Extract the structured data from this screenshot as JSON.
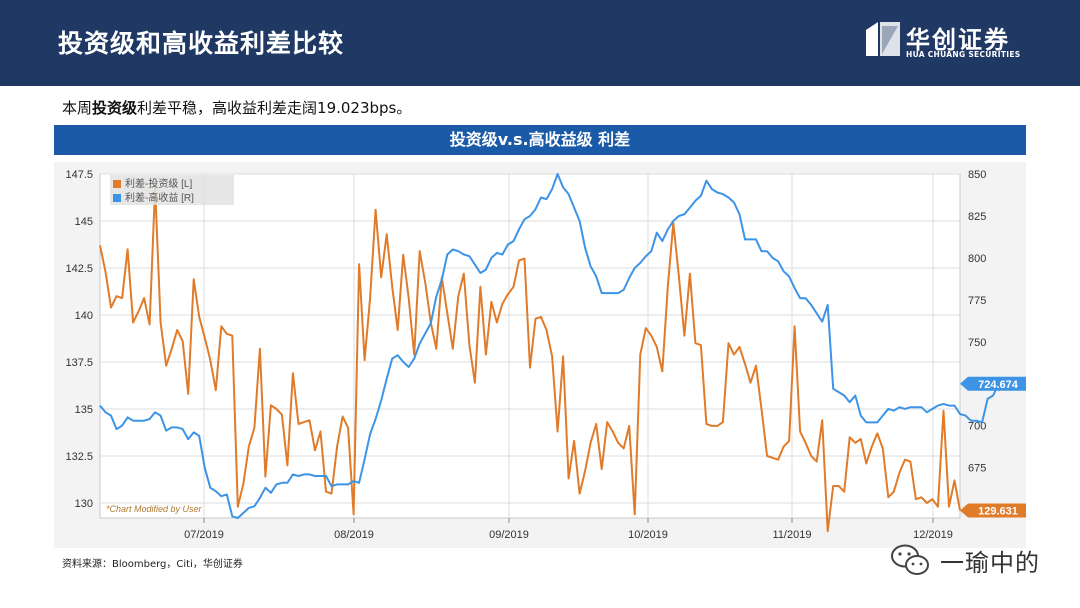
{
  "header": {
    "title": "投资级和高收益利差比较",
    "logo_cn": "华创证券",
    "logo_en": "HUA CHUANG SECURITIES"
  },
  "subtitle": {
    "prefix": "本周",
    "bold": "投资级",
    "suffix": "利差平稳，高收益利差走阔19.023bps。"
  },
  "chart_banner": "投资级v.s.高收益级 利差",
  "source": "资料来源：Bloomberg，Citi，华创证券",
  "watermark": "一瑜中的",
  "colors": {
    "ig": "#e07b2a",
    "hy": "#3d94e6",
    "header": "#1f3864",
    "banner": "#1a5aa6"
  },
  "chart_data": {
    "type": "line",
    "title": "投资级v.s.高收益级 利差",
    "note": "*Chart Modified by User",
    "x_tick_labels": [
      "07/2019",
      "08/2019",
      "09/2019",
      "10/2019",
      "11/2019",
      "12/2019"
    ],
    "y_left": {
      "ticks": [
        "147.5",
        "145",
        "142.5",
        "140",
        "137.5",
        "135",
        "132.5",
        "130"
      ],
      "min": 129.2,
      "max": 147.5
    },
    "y_right": {
      "ticks": [
        "850",
        "825",
        "800",
        "775",
        "750",
        "725",
        "700",
        "675",
        "650"
      ],
      "min": 645,
      "max": 850
    },
    "grid": true,
    "legend_position": "top-left",
    "series": [
      {
        "name": "利差-投资级 [L]",
        "axis": "left",
        "last_value_label": "129.631",
        "values": [
          143.7,
          142.3,
          140.4,
          141.0,
          140.9,
          143.5,
          139.6,
          140.2,
          140.9,
          139.5,
          146.8,
          139.6,
          137.3,
          138.2,
          139.2,
          138.6,
          135.8,
          141.9,
          139.9,
          138.8,
          137.6,
          136.0,
          139.4,
          139.0,
          138.9,
          129.8,
          131.0,
          133.0,
          134.0,
          138.2,
          131.4,
          135.2,
          135.0,
          134.7,
          132.0,
          136.9,
          134.2,
          134.3,
          134.4,
          132.8,
          133.8,
          130.6,
          130.5,
          133.0,
          134.6,
          134.0,
          129.4,
          142.7,
          137.6,
          140.9,
          145.6,
          142.0,
          144.3,
          141.5,
          139.2,
          143.2,
          140.9,
          137.9,
          143.4,
          141.7,
          139.6,
          138.2,
          142.0,
          140.1,
          138.2,
          141.0,
          142.2,
          138.4,
          136.4,
          141.5,
          137.9,
          140.7,
          139.6,
          140.6,
          141.1,
          141.5,
          142.9,
          143.0,
          137.2,
          139.8,
          139.9,
          139.2,
          137.8,
          133.8,
          137.8,
          131.3,
          133.3,
          130.5,
          131.7,
          133.2,
          134.2,
          131.8,
          134.3,
          133.8,
          133.2,
          132.9,
          134.1,
          129.4,
          137.9,
          139.3,
          138.9,
          138.3,
          137.0,
          141.5,
          144.9,
          142.1,
          138.9,
          142.2,
          138.5,
          138.4,
          134.2,
          134.1,
          134.1,
          134.3,
          138.5,
          137.9,
          138.3,
          137.4,
          136.4,
          137.3,
          135.0,
          132.5,
          132.4,
          132.3,
          133.0,
          133.3,
          139.4,
          133.8,
          133.2,
          132.5,
          132.2,
          134.4,
          128.5,
          130.9,
          130.9,
          130.6,
          133.5,
          133.2,
          133.4,
          132.1,
          133.0,
          133.7,
          132.9,
          130.3,
          130.6,
          131.6,
          132.3,
          132.2,
          130.2,
          130.3,
          130.0,
          130.2,
          129.8,
          134.9,
          129.8,
          131.2,
          129.6
        ]
      },
      {
        "name": "利差-高收益 [R]",
        "axis": "right",
        "last_value_label": "724.674",
        "values": [
          712,
          708,
          706,
          698,
          700,
          705,
          703,
          703,
          703,
          704,
          708,
          706,
          697,
          699,
          699,
          698,
          692,
          696,
          694,
          675,
          663,
          661,
          658,
          659,
          646,
          645,
          648,
          651,
          652,
          657,
          663,
          660,
          665,
          666,
          666,
          671,
          670,
          671,
          671,
          670,
          670,
          670,
          664,
          665,
          665,
          665,
          667,
          666,
          680,
          695,
          704,
          715,
          728,
          740,
          742,
          738,
          735,
          740,
          749,
          755,
          761,
          777,
          787,
          802,
          805,
          804,
          802,
          801,
          796,
          791,
          793,
          800,
          803,
          802,
          808,
          810,
          817,
          823,
          825,
          829,
          836,
          835,
          841,
          850,
          842,
          838,
          830,
          822,
          806,
          795,
          789,
          779,
          779,
          779,
          779,
          781,
          788,
          794,
          797,
          801,
          804,
          815,
          810,
          817,
          822,
          825,
          826,
          830,
          834,
          837,
          846,
          841,
          839,
          838,
          836,
          833,
          826,
          811,
          811,
          811,
          804,
          804,
          800,
          798,
          792,
          789,
          782,
          776,
          776,
          772,
          767,
          762,
          772,
          722,
          720,
          718,
          714,
          718,
          706,
          702,
          702,
          702,
          706,
          710,
          709,
          711,
          710,
          711,
          711,
          711,
          708,
          710,
          712,
          713,
          712,
          712,
          707,
          706,
          703,
          703,
          702,
          716,
          718,
          725
        ]
      }
    ]
  }
}
